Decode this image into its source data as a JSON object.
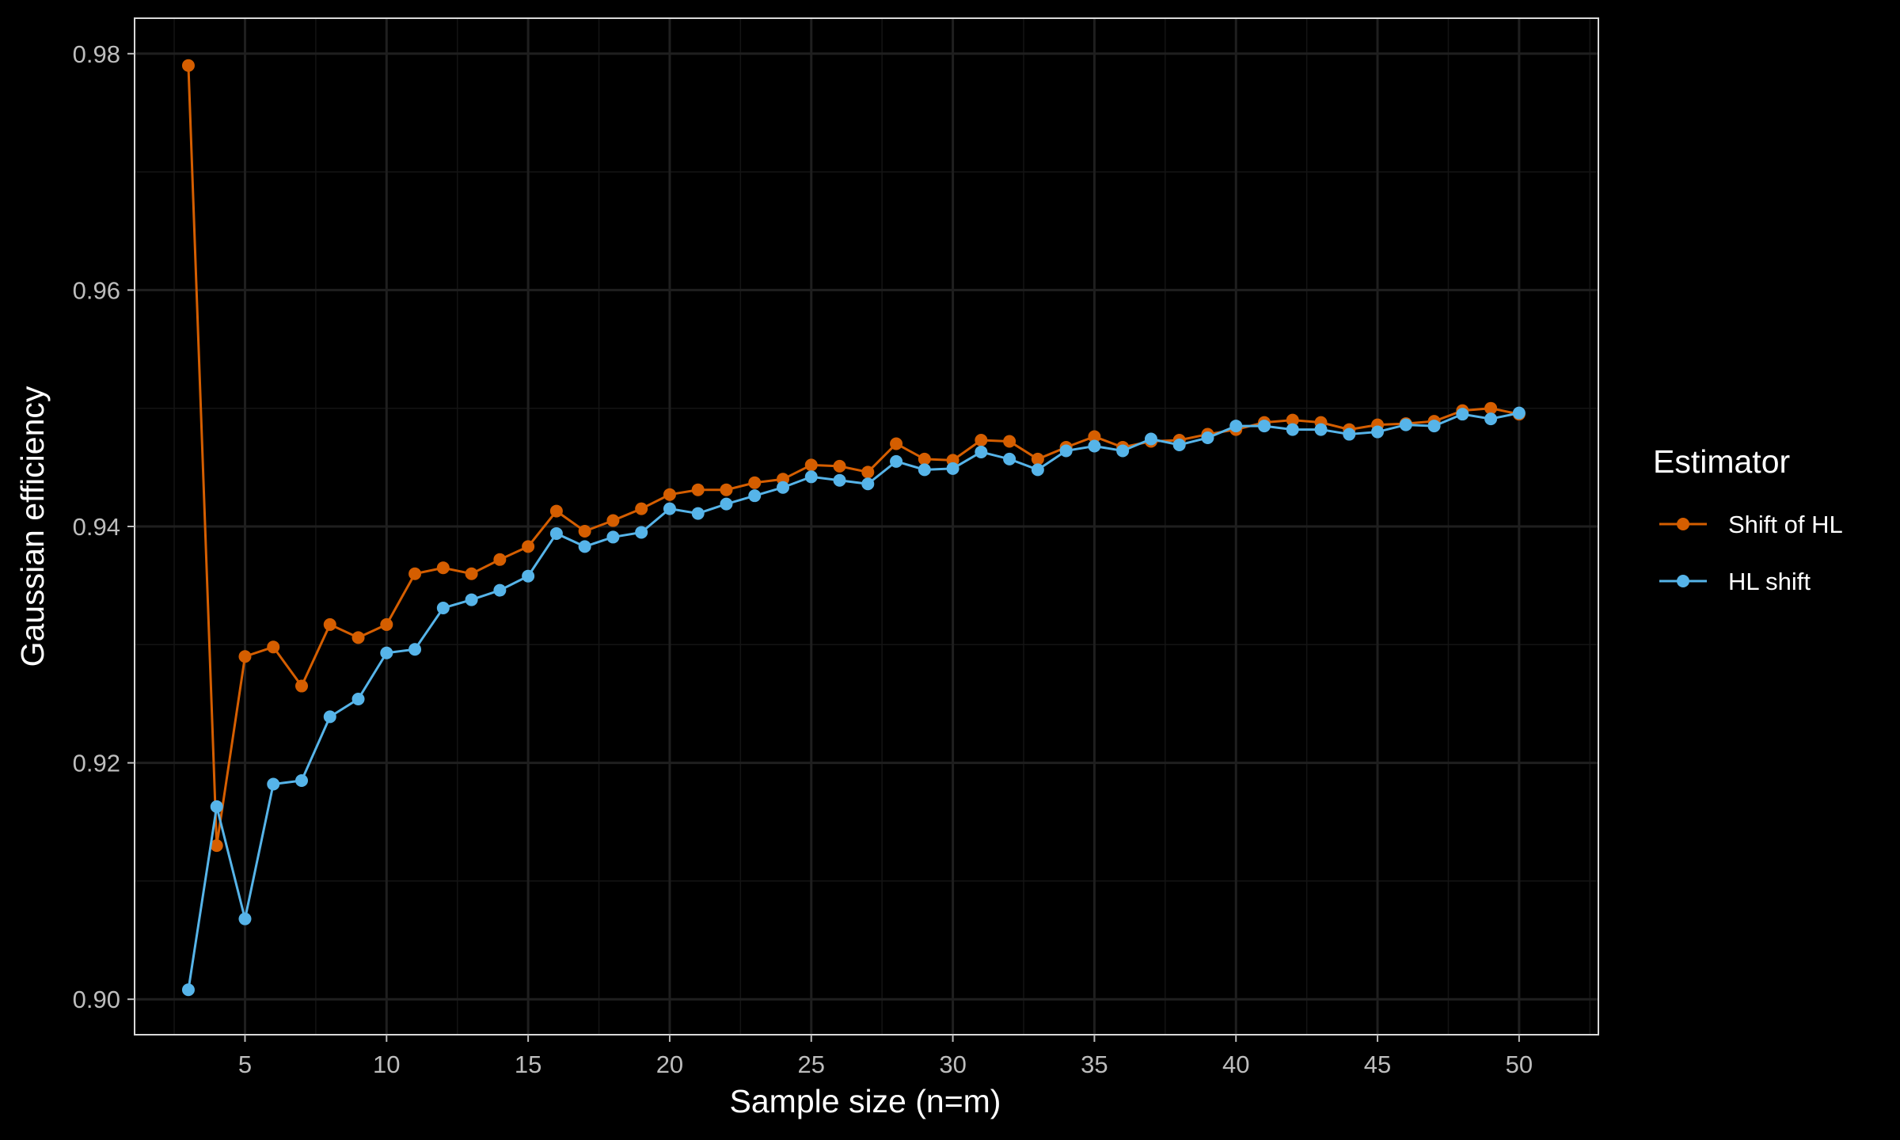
{
  "chart_data": {
    "type": "line",
    "xlabel": "Sample size (n=m)",
    "ylabel": "Gaussian efficiency",
    "xlim": [
      1.1,
      52.8
    ],
    "ylim": [
      0.897,
      0.983
    ],
    "x_ticks": [
      5,
      10,
      15,
      20,
      25,
      30,
      35,
      40,
      45,
      50
    ],
    "y_ticks": [
      0.9,
      0.92,
      0.94,
      0.96,
      0.98
    ],
    "y_tick_labels": [
      "0.90",
      "0.92",
      "0.94",
      "0.96",
      "0.98"
    ],
    "grid": true,
    "legend": {
      "title": "Estimator",
      "position": "right"
    },
    "x": [
      3,
      4,
      5,
      6,
      7,
      8,
      9,
      10,
      11,
      12,
      13,
      14,
      15,
      16,
      17,
      18,
      19,
      20,
      21,
      22,
      23,
      24,
      25,
      26,
      27,
      28,
      29,
      30,
      31,
      32,
      33,
      34,
      35,
      36,
      37,
      38,
      39,
      40,
      41,
      42,
      43,
      44,
      45,
      46,
      47,
      48,
      49,
      50
    ],
    "series": [
      {
        "name": "Shift of HL",
        "color": "#d55e00",
        "values": [
          0.979,
          0.913,
          0.929,
          0.9298,
          0.9265,
          0.9317,
          0.9306,
          0.9317,
          0.936,
          0.9365,
          0.936,
          0.9372,
          0.9383,
          0.9413,
          0.9396,
          0.9405,
          0.9415,
          0.9427,
          0.9431,
          0.9431,
          0.9437,
          0.944,
          0.9452,
          0.9451,
          0.9446,
          0.947,
          0.9457,
          0.9456,
          0.9473,
          0.9472,
          0.9457,
          0.9467,
          0.9476,
          0.9467,
          0.9472,
          0.9473,
          0.9478,
          0.9482,
          0.9488,
          0.949,
          0.9488,
          0.9482,
          0.9486,
          0.9487,
          0.9489,
          0.9498,
          0.95,
          0.9495
        ]
      },
      {
        "name": "HL shift",
        "color": "#56b4e9",
        "values": [
          0.9008,
          0.9163,
          0.9068,
          0.9182,
          0.9185,
          0.9239,
          0.9254,
          0.9293,
          0.9296,
          0.9331,
          0.9338,
          0.9346,
          0.9358,
          0.9394,
          0.9383,
          0.9391,
          0.9395,
          0.9415,
          0.9411,
          0.9419,
          0.9426,
          0.9433,
          0.9442,
          0.9439,
          0.9436,
          0.9455,
          0.9448,
          0.9449,
          0.9463,
          0.9457,
          0.9448,
          0.9464,
          0.9468,
          0.9464,
          0.9474,
          0.9469,
          0.9475,
          0.9485,
          0.9485,
          0.9482,
          0.9482,
          0.9478,
          0.948,
          0.9486,
          0.9485,
          0.9495,
          0.9491,
          0.9496
        ]
      }
    ]
  }
}
